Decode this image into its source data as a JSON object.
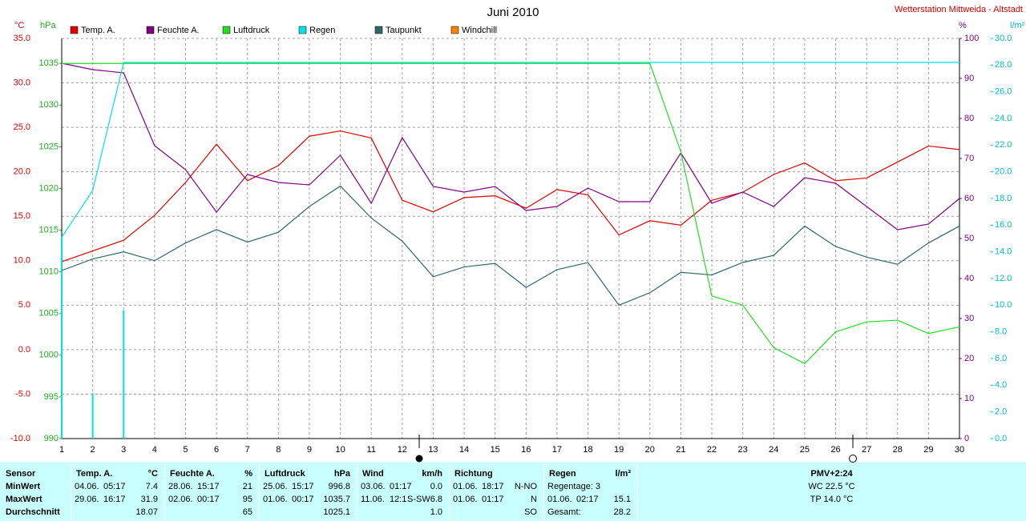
{
  "chart_data": {
    "type": "line",
    "title": "Juni 2010",
    "subtitle": "Wetterstation Mittweida - Altstadt",
    "y_label": "°C",
    "y3_label": "hPa",
    "y2_label": "%",
    "y4_label": "l/m²",
    "x": [
      1,
      2,
      3,
      4,
      5,
      6,
      7,
      8,
      9,
      10,
      11,
      12,
      13,
      14,
      15,
      16,
      17,
      18,
      19,
      20,
      21,
      22,
      23,
      24,
      25,
      26,
      27,
      28,
      29,
      30
    ],
    "xlim": [
      1,
      30
    ],
    "ylim": [
      -10,
      35
    ],
    "yticks": [
      {
        "value": -10,
        "label": "-10.0"
      },
      {
        "value": -5,
        "label": "-5.0"
      },
      {
        "value": 0,
        "label": "0.0"
      },
      {
        "value": 5,
        "label": "5.0"
      },
      {
        "value": 10,
        "label": "10.0"
      },
      {
        "value": 15,
        "label": "15.0"
      },
      {
        "value": 20,
        "label": "20.0"
      },
      {
        "value": 25,
        "label": "25.0"
      },
      {
        "value": 30,
        "label": "30.0"
      },
      {
        "value": 35,
        "label": "35.0"
      }
    ],
    "y3lim": [
      990,
      1038
    ],
    "y3ticks": [
      990,
      995,
      1000,
      1005,
      1010,
      1015,
      1020,
      1025,
      1030,
      1035
    ],
    "y2lim": [
      0,
      100
    ],
    "y2ticks": [
      0,
      10,
      20,
      30,
      40,
      50,
      60,
      70,
      80,
      90,
      100
    ],
    "y4lim": [
      0,
      30
    ],
    "y4ticks": [
      {
        "value": 0,
        "label": "0.0"
      },
      {
        "value": 2,
        "label": "2.0"
      },
      {
        "value": 4,
        "label": "4.0"
      },
      {
        "value": 6,
        "label": "6.0"
      },
      {
        "value": 8,
        "label": "8.0"
      },
      {
        "value": 10,
        "label": "10.0"
      },
      {
        "value": 12,
        "label": "12.0"
      },
      {
        "value": 14,
        "label": "14.0"
      },
      {
        "value": 16,
        "label": "16.0"
      },
      {
        "value": 18,
        "label": "18.0"
      },
      {
        "value": 20,
        "label": "20.0"
      },
      {
        "value": 22,
        "label": "22.0"
      },
      {
        "value": 24,
        "label": "24.0"
      },
      {
        "value": 26,
        "label": "26.0"
      },
      {
        "value": 28,
        "label": "28.0"
      },
      {
        "value": 30,
        "label": "30.0"
      }
    ],
    "grid": true,
    "series": [
      {
        "name": "Temp. A.",
        "color": "#e00000",
        "axis": "y",
        "values": [
          9.9,
          11.1,
          12.3,
          15.1,
          18.8,
          23.1,
          19.0,
          20.7,
          24.0,
          24.6,
          23.8,
          16.8,
          15.5,
          17.1,
          17.3,
          15.9,
          18.0,
          17.4,
          12.9,
          14.5,
          14.0,
          16.8,
          17.7,
          19.7,
          21.0,
          19.0,
          19.3,
          21.1,
          22.9,
          22.5
        ]
      },
      {
        "name": "Feuchte A.",
        "color": "#800080",
        "axis": "y2",
        "values": [
          93.8,
          92.2,
          91.4,
          73.2,
          67.2,
          56.6,
          66.0,
          64.0,
          63.4,
          70.8,
          58.8,
          75.2,
          63.0,
          61.6,
          63.0,
          57.0,
          58.0,
          62.6,
          59.2,
          59.2,
          71.4,
          58.8,
          61.6,
          58.0,
          65.2,
          63.8,
          58.0,
          52.2,
          53.6,
          60.0
        ]
      },
      {
        "name": "Luftdruck",
        "color": "#22dd22",
        "axis": "y3",
        "values": [
          1035.0,
          1035.0,
          1035.0,
          1035.0,
          1035.0,
          1035.0,
          1035.0,
          1035.0,
          1035.0,
          1035.0,
          1035.0,
          1035.0,
          1035.0,
          1035.0,
          1035.0,
          1035.0,
          1035.0,
          1035.0,
          1035.0,
          1035.0,
          1024.4,
          1007.1,
          1006.0,
          1000.9,
          999.0,
          1002.8,
          1004.0,
          1004.2,
          1002.6,
          1003.4
        ]
      },
      {
        "name": "Regen",
        "color": "#00e0e8",
        "axis": "y4",
        "values": [
          15.1,
          18.6,
          28.2,
          28.2,
          28.2,
          28.2,
          28.2,
          28.2,
          28.2,
          28.2,
          28.2,
          28.2,
          28.2,
          28.2,
          28.2,
          28.2,
          28.2,
          28.2,
          28.2,
          28.2,
          28.2,
          28.2,
          28.2,
          28.2,
          28.2,
          28.2,
          28.2,
          28.2,
          28.2,
          28.2
        ],
        "bars": [
          15.1,
          3.4,
          9.6,
          null,
          null,
          null,
          null,
          null,
          null,
          null,
          null,
          null,
          null,
          null,
          null,
          null,
          null,
          null,
          null,
          null,
          null,
          null,
          null,
          null,
          null,
          null,
          null,
          null,
          null,
          null
        ]
      },
      {
        "name": "Taupunkt",
        "color": "#336666",
        "axis": "y",
        "values": [
          8.9,
          10.2,
          11.0,
          10.0,
          12.0,
          13.5,
          12.1,
          13.2,
          16.1,
          18.4,
          14.8,
          12.2,
          8.2,
          9.3,
          9.7,
          7.0,
          9.0,
          9.8,
          5.0,
          6.4,
          8.7,
          8.4,
          9.8,
          10.6,
          13.9,
          11.6,
          10.4,
          9.6,
          12.0,
          13.9
        ]
      },
      {
        "name": "Windchill",
        "color": "#ff8000",
        "axis": "y",
        "values": [
          null,
          null,
          null,
          null,
          null,
          null,
          null,
          null,
          null,
          null,
          null,
          null,
          null,
          null,
          null,
          null,
          null,
          null,
          null,
          null,
          null,
          null,
          null,
          null,
          null,
          null,
          null,
          null,
          null,
          null
        ]
      }
    ]
  },
  "table": {
    "columns": [
      {
        "title": "Sensor"
      },
      {
        "title": "Temp. A.",
        "unit": "°C"
      },
      {
        "title": "Feuchte A.",
        "unit": "%"
      },
      {
        "title": "Luftdruck",
        "unit": "hPa"
      },
      {
        "title": "Wind",
        "unit": "km/h"
      },
      {
        "title": "Richtung"
      },
      {
        "title": "Regen",
        "unit": "l/m²"
      },
      {
        "title": "PMV+2:24"
      }
    ],
    "rows": [
      {
        "label": "MinWert",
        "cells": [
          {
            "date": "04.06.",
            "time": "05:17",
            "value": "7.4"
          },
          {
            "date": "28.06.",
            "time": "15:17",
            "value": "21"
          },
          {
            "date": "25.06.",
            "time": "15:17",
            "value": "996.8"
          },
          {
            "date": "03.06.",
            "time": "01:17",
            "value": "0.0"
          },
          {
            "date": "01.06.",
            "time": "18:17",
            "value": "N-NO"
          },
          {
            "text": "Regentage: 3"
          },
          {
            "text": "WC 22.5 °C"
          }
        ]
      },
      {
        "label": "MaxWert",
        "cells": [
          {
            "date": "29.06.",
            "time": "16:17",
            "value": "31.9"
          },
          {
            "date": "02.06.",
            "time": "00:17",
            "value": "95"
          },
          {
            "date": "01.06.",
            "time": "00:17",
            "value": "1035.7"
          },
          {
            "date": "11.06.",
            "time": "12:1",
            "dir": "S-SW",
            "value": "6.8"
          },
          {
            "date": "01.06.",
            "time": "01:17",
            "value": "N"
          },
          {
            "date": "01.06.",
            "time": "02:17",
            "value": "15.1"
          },
          {
            "text": "TP 14.0 °C"
          }
        ]
      },
      {
        "label": "Durchschnitt",
        "cells": [
          {
            "value": "18.07"
          },
          {
            "value": "65"
          },
          {
            "value": "1025.1"
          },
          {
            "value": "1.0"
          },
          {
            "value": "SO"
          },
          {
            "label": "Gesamt:",
            "value": "28.2"
          },
          null
        ]
      }
    ]
  }
}
